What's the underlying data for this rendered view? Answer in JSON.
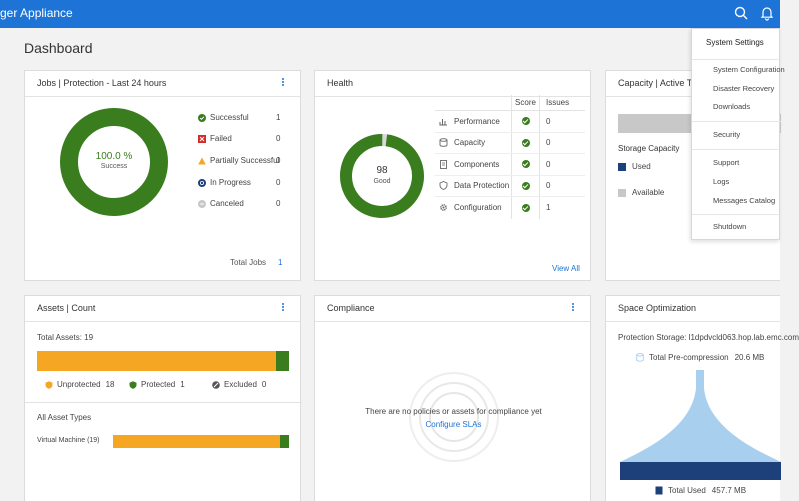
{
  "header": {
    "app_title": "ger Appliance",
    "search_icon": "search-icon",
    "bell_icon": "bell-icon"
  },
  "page": {
    "title": "Dashboard"
  },
  "jobs": {
    "title": "Jobs | Protection - Last 24 hours",
    "percent": "100.0 %",
    "center_label": "Success",
    "legend": [
      {
        "label": "Successful",
        "value": "1",
        "color": "#3a7d1e",
        "icon": "check-circle-icon"
      },
      {
        "label": "Failed",
        "value": "0",
        "color": "#d12b2b",
        "icon": "x-square-icon"
      },
      {
        "label": "Partially Successful",
        "value": "0",
        "color": "#f5a623",
        "icon": "warning-triangle-icon"
      },
      {
        "label": "In Progress",
        "value": "0",
        "color": "#1d3f7a",
        "icon": "progress-circle-icon"
      },
      {
        "label": "Canceled",
        "value": "0",
        "color": "#c8c8c8",
        "icon": "canceled-circle-icon"
      }
    ],
    "total_label": "Total Jobs",
    "total_value": "1"
  },
  "health": {
    "title": "Health",
    "score": "98",
    "score_label": "Good",
    "score_fraction": 0.98,
    "col_score": "Score",
    "col_issues": "Issues",
    "rows": [
      {
        "label": "Performance",
        "icon": "bar-chart-icon",
        "issues": "0"
      },
      {
        "label": "Capacity",
        "icon": "database-icon",
        "issues": "0"
      },
      {
        "label": "Components",
        "icon": "document-icon",
        "issues": "0"
      },
      {
        "label": "Data Protection",
        "icon": "shield-icon",
        "issues": "0"
      },
      {
        "label": "Configuration",
        "icon": "gear-icon",
        "issues": "1"
      }
    ],
    "view_all": "View All"
  },
  "capacity": {
    "title": "Capacity | Active Ti",
    "storage_label": "Storage Capacity",
    "used": "Used",
    "available": "Available",
    "used_color": "#1d3f7a",
    "available_color": "#c8c8c8"
  },
  "assets": {
    "title": "Assets | Count",
    "total": "Total Assets: 19",
    "protected_fraction": 0.0526,
    "legend": [
      {
        "label": "Unprotected",
        "value": "18",
        "icon": "unprotected-shield-icon",
        "color": "#f5a623"
      },
      {
        "label": "Protected",
        "value": "1",
        "icon": "protected-shield-icon",
        "color": "#3a7d1e"
      },
      {
        "label": "Excluded",
        "value": "0",
        "icon": "excluded-icon",
        "color": "#555555"
      }
    ],
    "types_title": "All Asset Types",
    "types": [
      {
        "label": "Virtual Machine (19)",
        "protected_fraction": 0.0526
      }
    ]
  },
  "compliance": {
    "title": "Compliance",
    "empty_text": "There are no policies or assets for compliance yet",
    "link": "Configure SLAs"
  },
  "space": {
    "title": "Space Optimization",
    "storage": "Protection Storage: l1dpdvcld063.hop.lab.emc.com",
    "precompression_label": "Total Pre-compression",
    "precompression_value": "20.6 MB",
    "used_label": "Total Used",
    "used_value": "457.7 MB",
    "funnel_color": "#a9cfee",
    "used_color": "#1d3f7a"
  },
  "menu": {
    "header": "System Settings",
    "items": [
      "System Configuration",
      "Disaster Recovery",
      "Downloads",
      "Security",
      "Support",
      "Logs",
      "Messages Catalog",
      "Shutdown"
    ]
  },
  "colors": {
    "brand": "#1e73d6",
    "success": "#3a7d1e",
    "warning": "#f5a623"
  }
}
